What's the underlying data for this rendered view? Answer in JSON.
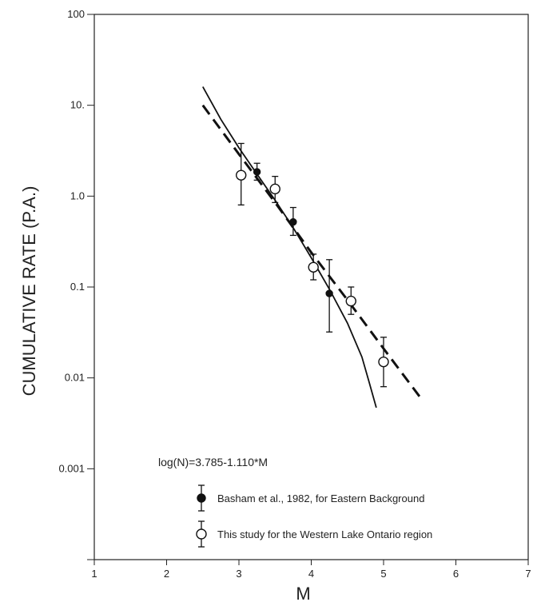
{
  "chart_data": {
    "type": "scatter",
    "title": "",
    "xlabel": "M",
    "ylabel": "CUMULATIVE RATE (P.A.)",
    "xlim": [
      1,
      7
    ],
    "ylim": [
      0.0001,
      100
    ],
    "yscale": "log",
    "grid": false,
    "x_ticks": [
      "1",
      "2",
      "3",
      "4",
      "5",
      "6",
      "7"
    ],
    "y_ticks": [
      {
        "value": 100,
        "label": "100"
      },
      {
        "value": 10,
        "label": "10."
      },
      {
        "value": 1,
        "label": "1.0"
      },
      {
        "value": 0.1,
        "label": "0.1"
      },
      {
        "value": 0.01,
        "label": "0.01"
      },
      {
        "value": 0.001,
        "label": "0.001"
      },
      {
        "value": 0.0001,
        "label": ""
      }
    ],
    "annotation": "log(N)=3.785-1.110*M",
    "legend_position": "bottom-center",
    "series": [
      {
        "name": "Basham et al., 1982, for Eastern Background",
        "marker": "filled-circle",
        "color": "#000000",
        "points": [
          {
            "x": 3.25,
            "y": 1.85,
            "low": 1.5,
            "high": 2.3
          },
          {
            "x": 3.75,
            "y": 0.52,
            "low": 0.37,
            "high": 0.75
          },
          {
            "x": 4.25,
            "y": 0.085,
            "low": 0.032,
            "high": 0.2
          }
        ]
      },
      {
        "name": "This study for the Western Lake Ontario region",
        "marker": "open-circle",
        "color": "#000000",
        "points": [
          {
            "x": 3.03,
            "y": 1.7,
            "low": 0.8,
            "high": 3.8
          },
          {
            "x": 3.5,
            "y": 1.2,
            "low": 0.85,
            "high": 1.65
          },
          {
            "x": 4.03,
            "y": 0.165,
            "low": 0.12,
            "high": 0.23
          },
          {
            "x": 4.55,
            "y": 0.07,
            "low": 0.05,
            "high": 0.1
          },
          {
            "x": 5.0,
            "y": 0.015,
            "low": 0.008,
            "high": 0.028
          }
        ]
      }
    ],
    "lines": [
      {
        "style": "dashed",
        "points": [
          [
            2.5,
            10.0
          ],
          [
            3.0,
            2.9
          ],
          [
            3.5,
            0.85
          ],
          [
            4.0,
            0.24
          ],
          [
            4.5,
            0.072
          ],
          [
            5.0,
            0.021
          ],
          [
            5.5,
            0.0062
          ]
        ]
      },
      {
        "style": "solid",
        "points": [
          [
            2.5,
            16.0
          ],
          [
            2.75,
            7.0
          ],
          [
            3.0,
            3.4
          ],
          [
            3.25,
            1.75
          ],
          [
            3.5,
            0.9
          ],
          [
            3.75,
            0.45
          ],
          [
            4.0,
            0.21
          ],
          [
            4.25,
            0.095
          ],
          [
            4.5,
            0.04
          ],
          [
            4.7,
            0.017
          ],
          [
            4.8,
            0.009
          ],
          [
            4.9,
            0.0047
          ]
        ]
      }
    ]
  }
}
